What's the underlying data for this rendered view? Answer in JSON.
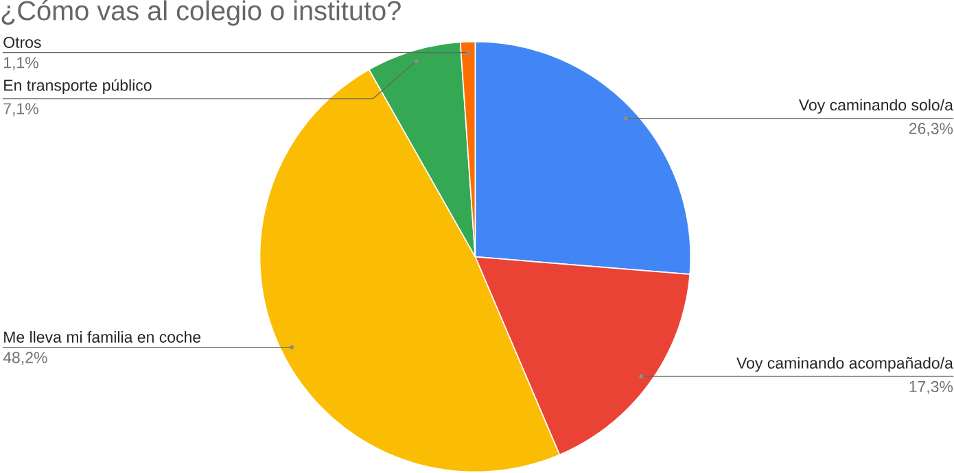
{
  "chart_data": {
    "type": "pie",
    "title": "¿Cómo vas al colegio o instituto?",
    "categories": [
      "Voy caminando solo/a",
      "Voy caminando acompañado/a",
      "Me lleva mi familia en coche",
      "En transporte público",
      "Otros"
    ],
    "values": [
      26.3,
      17.3,
      48.2,
      7.1,
      1.1
    ],
    "value_labels": [
      "26,3%",
      "17,3%",
      "48,2%",
      "7,1%",
      "1,1%"
    ],
    "colors": [
      "#4285f4",
      "#ea4335",
      "#fbbc04",
      "#34a853",
      "#ff6d01"
    ]
  }
}
